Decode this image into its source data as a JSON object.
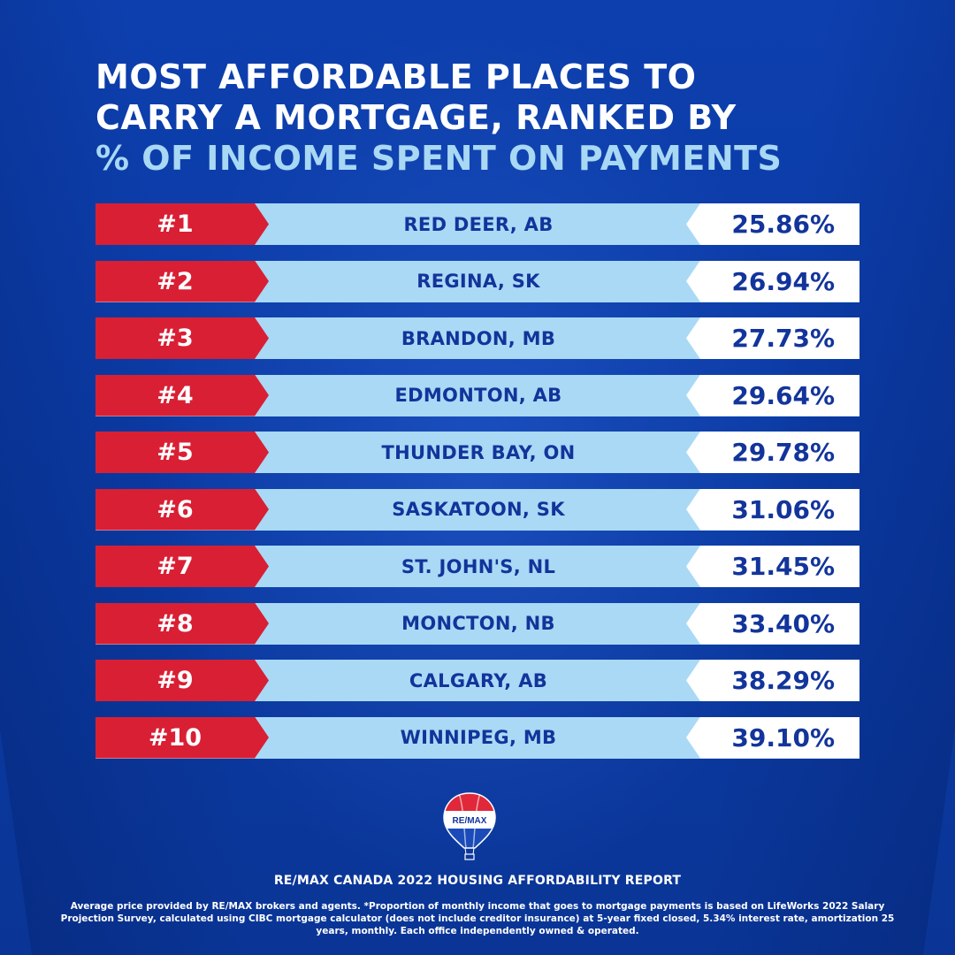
{
  "title": {
    "line1": "MOST AFFORDABLE PLACES TO",
    "line2": "CARRY A MORTGAGE, RANKED BY",
    "line3": "% OF INCOME SPENT ON PAYMENTS"
  },
  "colors": {
    "background": "#0b3aa3",
    "rank_red": "#d91f34",
    "bar_light_blue": "#a9d9f5",
    "text_navy": "#12349b",
    "accent_light_blue": "#a8d8f4"
  },
  "chart_data": {
    "type": "table",
    "columns": [
      "rank",
      "city",
      "percent"
    ],
    "rows": [
      {
        "rank": "#1",
        "city": "RED DEER, AB",
        "percent": "25.86%"
      },
      {
        "rank": "#2",
        "city": "REGINA, SK",
        "percent": "26.94%"
      },
      {
        "rank": "#3",
        "city": "BRANDON, MB",
        "percent": "27.73%"
      },
      {
        "rank": "#4",
        "city": "EDMONTON, AB",
        "percent": "29.64%"
      },
      {
        "rank": "#5",
        "city": "THUNDER BAY, ON",
        "percent": "29.78%"
      },
      {
        "rank": "#6",
        "city": "SASKATOON, SK",
        "percent": "31.06%"
      },
      {
        "rank": "#7",
        "city": "ST. JOHN'S, NL",
        "percent": "31.45%"
      },
      {
        "rank": "#8",
        "city": "MONCTON, NB",
        "percent": "33.40%"
      },
      {
        "rank": "#9",
        "city": "CALGARY, AB",
        "percent": "38.29%"
      },
      {
        "rank": "#10",
        "city": "WINNIPEG, MB",
        "percent": "39.10%"
      }
    ]
  },
  "logo": {
    "icon": "remax-balloon-icon",
    "text": "RE/MAX"
  },
  "report_title": "RE/MAX CANADA 2022 HOUSING AFFORDABILITY REPORT",
  "footnote": "Average price provided by RE/MAX brokers and agents. *Proportion of monthly income that goes to mortgage payments is based on LifeWorks 2022 Salary Projection Survey, calculated using CIBC mortgage calculator (does not include creditor insurance) at 5-year fixed closed, 5.34% interest rate, amortization 25 years, monthly. Each office independently owned & operated."
}
